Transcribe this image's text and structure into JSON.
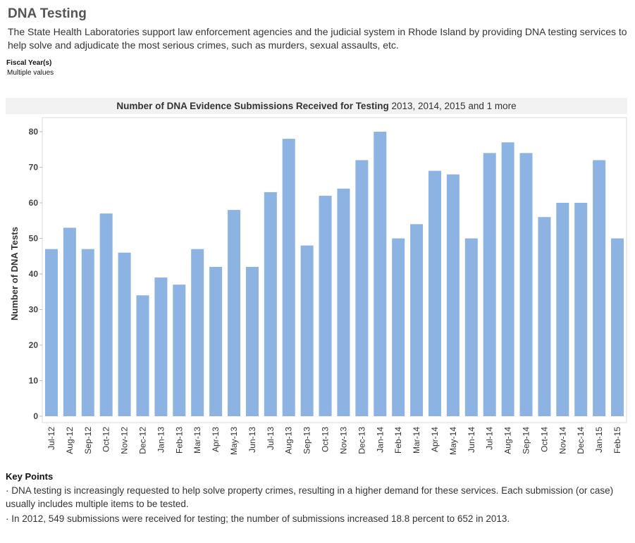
{
  "header": {
    "title": "DNA Testing",
    "intro": "The State Health Laboratories support law enforcement agencies and the judicial system in Rhode Island by providing DNA testing services to help solve and adjudicate the most serious crimes, such as murders, sexual assaults, etc."
  },
  "filter": {
    "label": "Fiscal Year(s)",
    "value": "Multiple values"
  },
  "chart_title": {
    "main": "Number of DNA Evidence Submissions Received for Testing",
    "suffix": "2013, 2014, 2015 and 1 more"
  },
  "chart_data": {
    "type": "bar",
    "title": "Number of DNA Evidence Submissions Received for Testing 2013, 2014, 2015 and 1 more",
    "xlabel": "",
    "ylabel": "Number of DNA Tests",
    "ylim": [
      0,
      84
    ],
    "yticks": [
      0,
      10,
      20,
      30,
      40,
      50,
      60,
      70,
      80
    ],
    "grid": false,
    "bar_color": "#8db3e2",
    "categories": [
      "Jul-12",
      "Aug-12",
      "Sep-12",
      "Oct-12",
      "Nov-12",
      "Dec-12",
      "Jan-13",
      "Feb-13",
      "Mar-13",
      "Apr-13",
      "May-13",
      "Jun-13",
      "Jul-13",
      "Aug-13",
      "Sep-13",
      "Oct-13",
      "Nov-13",
      "Dec-13",
      "Jan-14",
      "Feb-14",
      "Mar-14",
      "Apr-14",
      "May-14",
      "Jun-14",
      "Jul-14",
      "Aug-14",
      "Sep-14",
      "Oct-14",
      "Nov-14",
      "Dec-14",
      "Jan-15",
      "Feb-15"
    ],
    "values": [
      47,
      53,
      47,
      57,
      46,
      34,
      39,
      37,
      47,
      42,
      58,
      42,
      63,
      78,
      48,
      62,
      64,
      72,
      80,
      50,
      54,
      69,
      68,
      50,
      74,
      77,
      74,
      56,
      60,
      60,
      72,
      50
    ]
  },
  "key_points": {
    "title": "Key Points",
    "items": [
      "· DNA testing is increasingly requested to help solve property crimes, resulting in a higher demand for these services. Each submission (or case) usually includes multiple items to be tested.",
      "· In 2012, 549 submissions were received for testing; the number of submissions increased 18.8 percent to 652 in 2013."
    ]
  }
}
